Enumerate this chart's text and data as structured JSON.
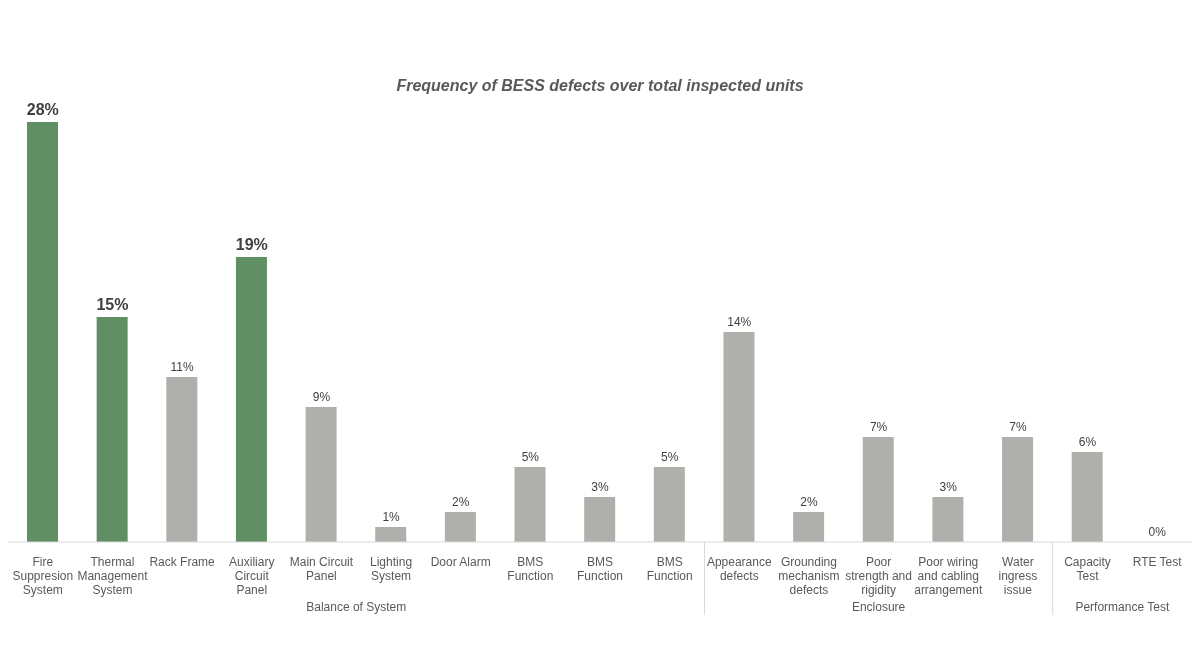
{
  "chart_data": {
    "type": "bar",
    "title": "Frequency of BESS defects over total inspected units",
    "categories": [
      "Fire Suppresion System",
      "Thermal Management System",
      "Rack Frame",
      "Auxiliary Circuit Panel",
      "Main Circuit Panel",
      "Lighting System",
      "Door Alarm",
      "BMS Function",
      "BMS Function",
      "BMS Function",
      "Appearance defects",
      "Grounding mechanism defects",
      "Poor strength and rigidity",
      "Poor wiring and cabling arrangement",
      "Water ingress issue",
      "Capacity Test",
      "RTE Test"
    ],
    "values": [
      28,
      15,
      11,
      19,
      9,
      1,
      2,
      5,
      3,
      5,
      14,
      2,
      7,
      3,
      7,
      6,
      0
    ],
    "value_labels": [
      "28%",
      "15%",
      "11%",
      "19%",
      "9%",
      "1%",
      "2%",
      "5%",
      "3%",
      "5%",
      "14%",
      "2%",
      "7%",
      "3%",
      "7%",
      "6%",
      "0%"
    ],
    "colors": [
      "#5f8f63",
      "#5f8f63",
      "#afafac",
      "#5f8f63",
      "#afafac",
      "#afafac",
      "#afafac",
      "#afafac",
      "#afafac",
      "#afafac",
      "#afafac",
      "#afafac",
      "#afafac",
      "#afafac",
      "#afafac",
      "#afafac",
      "#afafac"
    ],
    "annotations": [
      "Balance of System",
      "Enclosure",
      "Performance Test"
    ],
    "tick_labels": "x"
  }
}
